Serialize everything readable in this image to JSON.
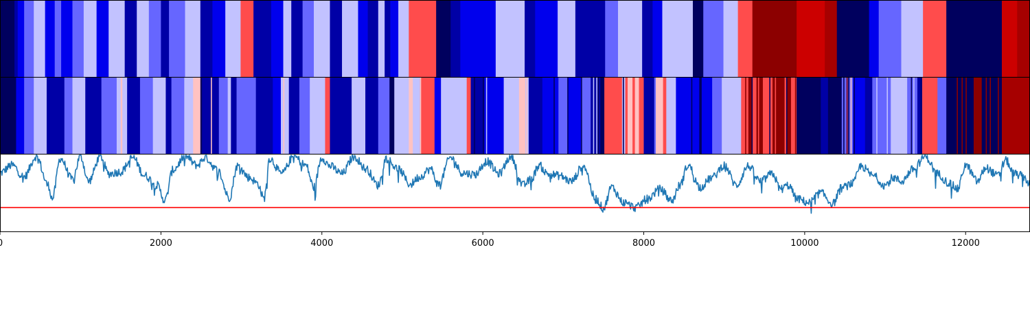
{
  "chart_data": [
    {
      "type": "heatmap",
      "colormap": "seismic",
      "x_range": [
        0,
        12800
      ],
      "segments": [
        [
          0,
          180,
          -0.95
        ],
        [
          180,
          220,
          -0.75
        ],
        [
          220,
          300,
          -0.55
        ],
        [
          300,
          420,
          -0.3
        ],
        [
          420,
          560,
          -0.12
        ],
        [
          560,
          680,
          -0.55
        ],
        [
          680,
          760,
          -0.3
        ],
        [
          760,
          900,
          -0.55
        ],
        [
          900,
          1040,
          -0.3
        ],
        [
          1040,
          1200,
          -0.12
        ],
        [
          1200,
          1350,
          -0.55
        ],
        [
          1350,
          1550,
          -0.12
        ],
        [
          1550,
          1700,
          -0.75
        ],
        [
          1700,
          1850,
          -0.12
        ],
        [
          1850,
          2000,
          -0.3
        ],
        [
          2000,
          2100,
          -0.75
        ],
        [
          2100,
          2300,
          -0.3
        ],
        [
          2300,
          2490,
          -0.12
        ],
        [
          2490,
          2640,
          -0.75
        ],
        [
          2640,
          2800,
          -0.55
        ],
        [
          2800,
          2990,
          -0.12
        ],
        [
          2990,
          3150,
          0.35
        ],
        [
          3150,
          3370,
          -0.75
        ],
        [
          3370,
          3520,
          -0.55
        ],
        [
          3520,
          3620,
          -0.12
        ],
        [
          3620,
          3760,
          -0.75
        ],
        [
          3760,
          3900,
          -0.3
        ],
        [
          3900,
          4100,
          -0.12
        ],
        [
          4100,
          4250,
          -0.75
        ],
        [
          4250,
          4450,
          -0.12
        ],
        [
          4450,
          4570,
          -0.55
        ],
        [
          4570,
          4700,
          -0.75
        ],
        [
          4700,
          4780,
          -0.12
        ],
        [
          4780,
          4850,
          -0.75
        ],
        [
          4850,
          4950,
          -0.55
        ],
        [
          4950,
          5080,
          -0.12
        ],
        [
          5080,
          5420,
          0.35
        ],
        [
          5420,
          5600,
          -0.95
        ],
        [
          5600,
          5720,
          -0.75
        ],
        [
          5720,
          6160,
          -0.55
        ],
        [
          6160,
          6520,
          -0.12
        ],
        [
          6520,
          6650,
          -0.75
        ],
        [
          6650,
          6930,
          -0.55
        ],
        [
          6930,
          7150,
          -0.12
        ],
        [
          7150,
          7520,
          -0.75
        ],
        [
          7520,
          7680,
          -0.3
        ],
        [
          7680,
          7980,
          -0.12
        ],
        [
          7980,
          8110,
          -0.75
        ],
        [
          8110,
          8230,
          -0.55
        ],
        [
          8230,
          8610,
          -0.12
        ],
        [
          8610,
          8740,
          -0.95
        ],
        [
          8740,
          8990,
          -0.3
        ],
        [
          8990,
          9170,
          -0.12
        ],
        [
          9170,
          9350,
          0.35
        ],
        [
          9350,
          9900,
          0.95
        ],
        [
          9900,
          10250,
          0.7
        ],
        [
          10250,
          10400,
          0.85
        ],
        [
          10400,
          10800,
          -0.95
        ],
        [
          10800,
          10920,
          -0.55
        ],
        [
          10920,
          11200,
          -0.3
        ],
        [
          11200,
          11470,
          -0.12
        ],
        [
          11470,
          11760,
          0.35
        ],
        [
          11760,
          12450,
          -0.95
        ],
        [
          12450,
          12640,
          0.7
        ],
        [
          12640,
          12800,
          0.85
        ]
      ]
    },
    {
      "type": "heatmap",
      "colormap": "seismic",
      "x_range": [
        0,
        12800
      ],
      "segments": [
        [
          0,
          200,
          -0.95
        ],
        [
          200,
          300,
          -0.55
        ],
        [
          300,
          420,
          -0.3
        ],
        [
          420,
          580,
          -0.12
        ],
        [
          580,
          800,
          -0.75
        ],
        [
          800,
          900,
          -0.3
        ],
        [
          900,
          1060,
          -0.12
        ],
        [
          1060,
          1260,
          -0.75
        ],
        [
          1260,
          1450,
          -0.3
        ],
        [
          1450,
          1500,
          -0.12
        ],
        [
          1500,
          1520,
          0.12
        ],
        [
          1520,
          1580,
          -0.12
        ],
        [
          1580,
          1740,
          -0.75
        ],
        [
          1740,
          1900,
          -0.3
        ],
        [
          1900,
          2060,
          -0.12
        ],
        [
          2060,
          2130,
          -0.75
        ],
        [
          2130,
          2290,
          -0.3
        ],
        [
          2290,
          2400,
          -0.12
        ],
        [
          2400,
          2490,
          0.12
        ],
        [
          2490,
          2510,
          -0.95
        ],
        [
          2510,
          2720,
          -0.75
        ],
        [
          2720,
          2830,
          -0.3
        ],
        [
          2830,
          2870,
          -0.12
        ],
        [
          2870,
          2940,
          -0.75
        ],
        [
          2940,
          3180,
          -0.3
        ],
        [
          3180,
          3390,
          -0.75
        ],
        [
          3390,
          3490,
          -0.55
        ],
        [
          3490,
          3590,
          -0.12
        ],
        [
          3590,
          3720,
          -0.75
        ],
        [
          3720,
          3850,
          -0.3
        ],
        [
          3850,
          4040,
          -0.12
        ],
        [
          4040,
          4100,
          0.35
        ],
        [
          4100,
          4370,
          -0.75
        ],
        [
          4370,
          4540,
          -0.12
        ],
        [
          4540,
          4700,
          -0.75
        ],
        [
          4700,
          4840,
          -0.3
        ],
        [
          4840,
          4900,
          -0.95
        ],
        [
          4900,
          5080,
          -0.12
        ],
        [
          5080,
          5130,
          0.12
        ],
        [
          5130,
          5220,
          -0.12
        ],
        [
          5220,
          5400,
          0.35
        ],
        [
          5400,
          5480,
          -0.55
        ],
        [
          5480,
          5800,
          -0.12
        ],
        [
          5800,
          5850,
          0.35
        ],
        [
          5850,
          6020,
          -0.75
        ],
        [
          6020,
          6260,
          -0.55
        ],
        [
          6260,
          6450,
          -0.12
        ],
        [
          6450,
          6530,
          0.12
        ],
        [
          6530,
          6570,
          -0.12
        ],
        [
          6570,
          6740,
          -0.75
        ],
        [
          6740,
          6940,
          -0.55
        ],
        [
          6940,
          7060,
          -0.3
        ],
        [
          7060,
          7220,
          -0.55
        ],
        [
          7220,
          7340,
          -0.3
        ],
        [
          7340,
          7460,
          -0.75
        ],
        [
          7460,
          7510,
          -0.95
        ],
        [
          7510,
          7730,
          0.35
        ],
        [
          7730,
          7770,
          -0.12
        ],
        [
          7770,
          7800,
          0.35
        ],
        [
          7800,
          7860,
          0.12
        ],
        [
          7860,
          7890,
          0.35
        ],
        [
          7890,
          7940,
          0.12
        ],
        [
          7940,
          8000,
          0.35
        ],
        [
          8000,
          8130,
          -0.75
        ],
        [
          8130,
          8150,
          -0.3
        ],
        [
          8150,
          8240,
          0.12
        ],
        [
          8240,
          8280,
          0.35
        ],
        [
          8280,
          8400,
          -0.12
        ],
        [
          8400,
          8700,
          -0.55
        ],
        [
          8700,
          8720,
          -0.95
        ],
        [
          8720,
          8850,
          -0.55
        ],
        [
          8850,
          8970,
          -0.3
        ],
        [
          8970,
          9210,
          -0.12
        ],
        [
          9210,
          9300,
          0.35
        ],
        [
          9300,
          9350,
          0.95
        ],
        [
          9350,
          9400,
          0.35
        ],
        [
          9400,
          9480,
          0.95
        ],
        [
          9480,
          9600,
          0.35
        ],
        [
          9600,
          9750,
          0.95
        ],
        [
          9750,
          9780,
          0.35
        ],
        [
          9780,
          9830,
          0.95
        ],
        [
          9830,
          9900,
          0.35
        ],
        [
          9900,
          10200,
          -0.95
        ],
        [
          10200,
          10290,
          -0.75
        ],
        [
          10290,
          10460,
          -0.95
        ],
        [
          10460,
          10600,
          -0.3
        ],
        [
          10600,
          10750,
          -0.55
        ],
        [
          10750,
          10840,
          -0.75
        ],
        [
          10840,
          11070,
          -0.3
        ],
        [
          11070,
          11260,
          -0.12
        ],
        [
          11260,
          11400,
          -0.3
        ],
        [
          11400,
          11460,
          -0.75
        ],
        [
          11460,
          11650,
          0.35
        ],
        [
          11650,
          11760,
          -0.3
        ],
        [
          11760,
          12100,
          -0.95
        ],
        [
          12100,
          12200,
          0.95
        ],
        [
          12200,
          12450,
          -0.95
        ],
        [
          12450,
          12800,
          0.85
        ]
      ],
      "lines": [
        [
          2470,
          0.12
        ],
        [
          2620,
          0.12
        ],
        [
          3520,
          0.12
        ],
        [
          5220,
          0.12
        ],
        [
          5890,
          -0.95
        ],
        [
          6000,
          -0.95
        ],
        [
          6040,
          -0.12
        ],
        [
          6480,
          0.12
        ],
        [
          6540,
          0.12
        ],
        [
          6880,
          -0.95
        ],
        [
          7050,
          -0.95
        ],
        [
          7220,
          -0.95
        ],
        [
          7370,
          -0.12
        ],
        [
          7410,
          -0.12
        ],
        [
          7430,
          -0.95
        ],
        [
          7740,
          -0.95
        ],
        [
          8170,
          0.12
        ],
        [
          8590,
          -0.95
        ],
        [
          8690,
          -0.95
        ],
        [
          9260,
          0.95
        ],
        [
          9340,
          -0.95
        ],
        [
          9420,
          0.35
        ],
        [
          9560,
          -0.95
        ],
        [
          9630,
          0.35
        ],
        [
          9770,
          -0.95
        ],
        [
          9880,
          0.95
        ],
        [
          10480,
          -0.95
        ],
        [
          10520,
          0.95
        ],
        [
          10540,
          -0.95
        ],
        [
          10570,
          0.12
        ],
        [
          10610,
          -0.95
        ],
        [
          10890,
          -0.12
        ],
        [
          11020,
          -0.12
        ],
        [
          11260,
          -0.12
        ],
        [
          11320,
          -0.95
        ],
        [
          11350,
          -0.12
        ],
        [
          11440,
          -0.95
        ],
        [
          11890,
          0.95
        ],
        [
          11950,
          0.95
        ],
        [
          12000,
          0.95
        ],
        [
          12180,
          0.95
        ],
        [
          12250,
          0.95
        ],
        [
          12300,
          0.95
        ],
        [
          12400,
          0.95
        ]
      ]
    },
    {
      "type": "line",
      "x_range": [
        0,
        12800
      ],
      "y_range": [
        -1.0,
        1.0
      ],
      "x_ticks": [
        0,
        2000,
        4000,
        6000,
        8000,
        10000,
        12000
      ],
      "x_tick_labels": [
        "0",
        "2000",
        "4000",
        "6000",
        "8000",
        "10000",
        "12000"
      ],
      "threshold": {
        "value": -0.38,
        "color": "#ff0000"
      },
      "series_color": "#1f77b4",
      "anchors": [
        [
          0,
          0.52
        ],
        [
          150,
          0.72
        ],
        [
          300,
          0.42
        ],
        [
          450,
          0.95
        ],
        [
          600,
          0.2
        ],
        [
          650,
          -0.15
        ],
        [
          750,
          0.9
        ],
        [
          900,
          0.35
        ],
        [
          1000,
          0.95
        ],
        [
          1100,
          0.3
        ],
        [
          1250,
          0.95
        ],
        [
          1350,
          0.5
        ],
        [
          1500,
          0.55
        ],
        [
          1650,
          0.92
        ],
        [
          1800,
          0.45
        ],
        [
          1950,
          0.2
        ],
        [
          2050,
          -0.2
        ],
        [
          2150,
          0.6
        ],
        [
          2300,
          0.95
        ],
        [
          2450,
          0.72
        ],
        [
          2550,
          0.92
        ],
        [
          2700,
          0.6
        ],
        [
          2850,
          -0.12
        ],
        [
          2950,
          0.7
        ],
        [
          3100,
          0.4
        ],
        [
          3200,
          0.25
        ],
        [
          3280,
          -0.15
        ],
        [
          3350,
          0.9
        ],
        [
          3500,
          0.5
        ],
        [
          3650,
          0.95
        ],
        [
          3800,
          0.72
        ],
        [
          3900,
          0.15
        ],
        [
          4000,
          0.92
        ],
        [
          4100,
          0.7
        ],
        [
          4250,
          0.5
        ],
        [
          4400,
          0.95
        ],
        [
          4550,
          0.62
        ],
        [
          4700,
          0.2
        ],
        [
          4800,
          0.9
        ],
        [
          4950,
          0.62
        ],
        [
          5100,
          0.22
        ],
        [
          5200,
          0.4
        ],
        [
          5350,
          0.62
        ],
        [
          5450,
          0.22
        ],
        [
          5600,
          0.92
        ],
        [
          5750,
          0.52
        ],
        [
          5900,
          0.48
        ],
        [
          6050,
          0.82
        ],
        [
          6200,
          0.5
        ],
        [
          6350,
          0.95
        ],
        [
          6500,
          0.2
        ],
        [
          6600,
          0.35
        ],
        [
          6700,
          0.72
        ],
        [
          6800,
          0.5
        ],
        [
          6950,
          0.45
        ],
        [
          7100,
          0.3
        ],
        [
          7250,
          0.72
        ],
        [
          7400,
          -0.15
        ],
        [
          7500,
          -0.4
        ],
        [
          7600,
          0.15
        ],
        [
          7750,
          -0.25
        ],
        [
          7900,
          -0.38
        ],
        [
          8050,
          -0.15
        ],
        [
          8200,
          0.1
        ],
        [
          8350,
          -0.2
        ],
        [
          8450,
          0.2
        ],
        [
          8550,
          0.72
        ],
        [
          8700,
          0.15
        ],
        [
          8850,
          0.4
        ],
        [
          9000,
          0.72
        ],
        [
          9150,
          0.2
        ],
        [
          9300,
          0.7
        ],
        [
          9450,
          0.3
        ],
        [
          9600,
          0.5
        ],
        [
          9700,
          0.1
        ],
        [
          9800,
          0.2
        ],
        [
          9900,
          -0.15
        ],
        [
          10050,
          -0.25
        ],
        [
          10200,
          0.0
        ],
        [
          10350,
          -0.28
        ],
        [
          10450,
          0.12
        ],
        [
          10600,
          0.25
        ],
        [
          10700,
          0.7
        ],
        [
          10850,
          0.45
        ],
        [
          11000,
          0.2
        ],
        [
          11100,
          0.4
        ],
        [
          11200,
          0.3
        ],
        [
          11350,
          0.62
        ],
        [
          11500,
          0.95
        ],
        [
          11650,
          0.5
        ],
        [
          11800,
          0.25
        ],
        [
          11900,
          0.1
        ],
        [
          12000,
          0.72
        ],
        [
          12150,
          0.3
        ],
        [
          12250,
          0.65
        ],
        [
          12400,
          0.45
        ],
        [
          12500,
          0.85
        ],
        [
          12600,
          0.5
        ],
        [
          12700,
          0.45
        ],
        [
          12800,
          0.25
        ]
      ]
    }
  ]
}
